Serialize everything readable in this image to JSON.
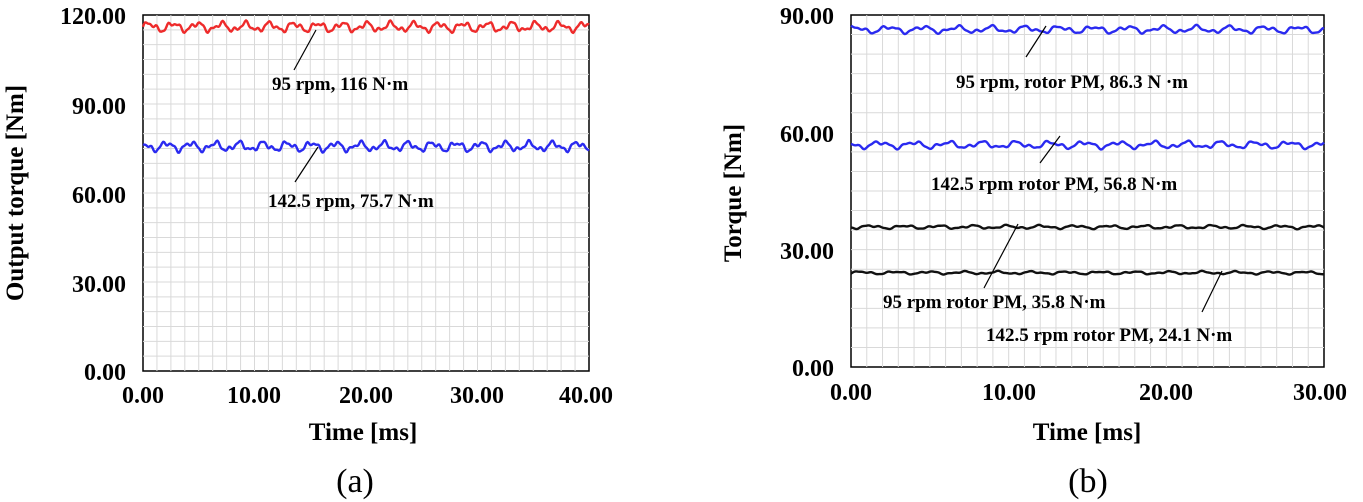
{
  "chart_data": [
    {
      "type": "line",
      "caption": "(a)",
      "xlabel": "Time [ms]",
      "ylabel": "Output torque [Nm]",
      "xlim": [
        0,
        40
      ],
      "ylim": [
        0,
        120
      ],
      "xticks": [
        "0.00",
        "10.00",
        "20.00",
        "30.00",
        "40.00"
      ],
      "yticks": [
        "0.00",
        "30.00",
        "60.00",
        "90.00",
        "120.00"
      ],
      "grid": true,
      "series": [
        {
          "color": "#ee2b2b",
          "mean": 116,
          "ripple": 2.2,
          "annotation": "95 rpm,  116 N·m",
          "leader_point": [
            15.8,
            115
          ]
        },
        {
          "color": "#2a2af0",
          "mean": 75.7,
          "ripple": 2.2,
          "annotation": "142.5 rpm, 75.7 N·m",
          "leader_point": [
            15.5,
            78
          ]
        }
      ]
    },
    {
      "type": "line",
      "caption": "(b)",
      "xlabel": "Time [ms]",
      "ylabel": "Torque [Nm]",
      "xlim": [
        0,
        30
      ],
      "ylim": [
        0,
        90
      ],
      "xticks": [
        "0.00",
        "10.00",
        "20.00",
        "30.00"
      ],
      "yticks": [
        "0.00",
        "30.00",
        "60.00",
        "90.00"
      ],
      "grid": true,
      "series": [
        {
          "color": "#2a2af0",
          "mean": 86.3,
          "ripple": 1.2,
          "annotation": "95 rpm, rotor PM, 86.3 N ·m",
          "leader_point": [
            12,
            87
          ]
        },
        {
          "color": "#2a2af0",
          "mean": 56.8,
          "ripple": 1.2,
          "annotation": "142.5 rpm rotor PM, 56.8 N·m",
          "leader_point": [
            13.5,
            57
          ]
        },
        {
          "color": "#111111",
          "mean": 35.8,
          "ripple": 0.6,
          "annotation": "95 rpm rotor PM, 35.8 N·m",
          "leader_point": [
            11,
            36
          ]
        },
        {
          "color": "#111111",
          "mean": 24.1,
          "ripple": 0.5,
          "annotation": "142.5 rpm rotor PM, 24.1 N·m",
          "leader_point": [
            24,
            24.5
          ]
        }
      ]
    }
  ]
}
